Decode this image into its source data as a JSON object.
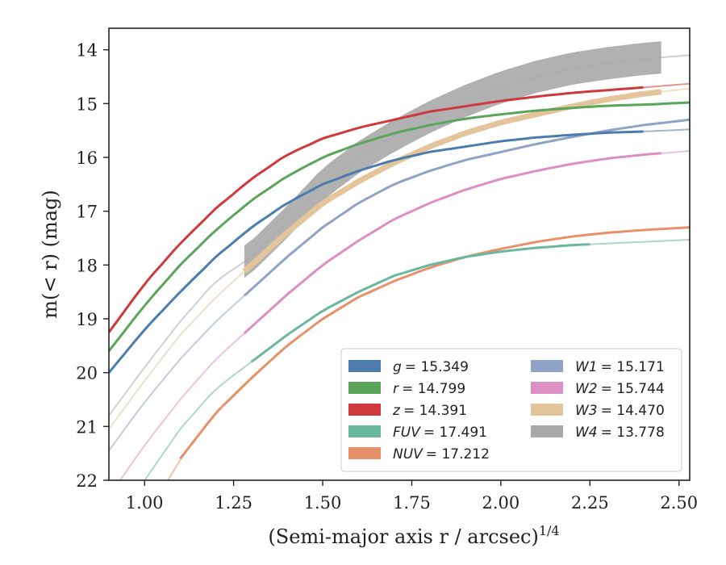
{
  "chart_data": {
    "type": "line",
    "xlabel": "(Semi-major axis r / arcsec)",
    "xlabel_sup": "1/4",
    "ylabel": "m(< r) (mag)",
    "xlim": [
      0.9,
      2.53
    ],
    "ylim": [
      22,
      13.6
    ],
    "y_inverted": true,
    "x_ticks": [
      "1.00",
      "1.25",
      "1.50",
      "1.75",
      "2.00",
      "2.25",
      "2.50"
    ],
    "y_ticks": [
      "14",
      "15",
      "16",
      "17",
      "18",
      "19",
      "20",
      "21",
      "22"
    ],
    "grid": false,
    "legend_position": "lower-right",
    "series": [
      {
        "name": "g",
        "label": "= 15.349",
        "color": "#4c7cae",
        "x": [
          0.9,
          1.0,
          1.1,
          1.2,
          1.3,
          1.4,
          1.5,
          1.6,
          1.7,
          1.8,
          1.9,
          2.0,
          2.1,
          2.2,
          2.3,
          2.4,
          2.53
        ],
        "y": [
          20.0,
          19.2,
          18.5,
          17.85,
          17.3,
          16.85,
          16.5,
          16.25,
          16.05,
          15.9,
          15.8,
          15.7,
          15.63,
          15.58,
          15.54,
          15.52,
          15.48
        ],
        "measured_x": [
          0.9,
          2.4
        ]
      },
      {
        "name": "r",
        "label": "= 14.799",
        "color": "#5aa55a",
        "x": [
          0.9,
          1.0,
          1.1,
          1.2,
          1.3,
          1.4,
          1.5,
          1.6,
          1.7,
          1.8,
          1.9,
          2.0,
          2.1,
          2.2,
          2.3,
          2.4,
          2.53
        ],
        "y": [
          19.6,
          18.75,
          18.0,
          17.35,
          16.8,
          16.35,
          16.0,
          15.75,
          15.55,
          15.4,
          15.28,
          15.2,
          15.13,
          15.08,
          15.04,
          15.02,
          14.98
        ],
        "measured_x": [
          0.9,
          2.53
        ]
      },
      {
        "name": "z",
        "label": "= 14.391",
        "color": "#d0393b",
        "x": [
          0.9,
          1.0,
          1.1,
          1.2,
          1.3,
          1.4,
          1.5,
          1.6,
          1.7,
          1.8,
          1.9,
          2.0,
          2.1,
          2.2,
          2.3,
          2.4,
          2.53
        ],
        "y": [
          19.25,
          18.35,
          17.6,
          16.95,
          16.4,
          15.95,
          15.65,
          15.45,
          15.3,
          15.15,
          15.05,
          14.95,
          14.87,
          14.8,
          14.75,
          14.7,
          14.63
        ],
        "measured_x": [
          0.9,
          2.4
        ]
      },
      {
        "name": "FUV",
        "label": "= 17.491",
        "color": "#6ab7a0",
        "x": [
          0.9,
          1.0,
          1.1,
          1.2,
          1.3,
          1.4,
          1.5,
          1.6,
          1.7,
          1.8,
          1.9,
          2.0,
          2.1,
          2.2,
          2.3,
          2.4,
          2.53
        ],
        "y": [
          23.0,
          22.0,
          21.05,
          20.3,
          19.8,
          19.3,
          18.85,
          18.5,
          18.2,
          18.0,
          17.85,
          17.75,
          17.68,
          17.63,
          17.6,
          17.57,
          17.53
        ],
        "measured_x": [
          1.3,
          2.25
        ]
      },
      {
        "name": "NUV",
        "label": "= 17.212",
        "color": "#e8906a",
        "x": [
          1.0,
          1.1,
          1.2,
          1.3,
          1.4,
          1.5,
          1.6,
          1.7,
          1.8,
          1.9,
          2.0,
          2.1,
          2.2,
          2.3,
          2.4,
          2.53
        ],
        "y": [
          22.8,
          21.6,
          20.75,
          20.1,
          19.5,
          19.0,
          18.6,
          18.3,
          18.05,
          17.85,
          17.7,
          17.57,
          17.47,
          17.4,
          17.35,
          17.3
        ],
        "measured_x": [
          1.1,
          2.53
        ]
      },
      {
        "name": "W1",
        "label": "= 15.171",
        "color": "#8fa3c6",
        "x": [
          0.9,
          1.0,
          1.1,
          1.2,
          1.3,
          1.4,
          1.5,
          1.6,
          1.7,
          1.8,
          1.9,
          2.0,
          2.1,
          2.2,
          2.3,
          2.4,
          2.53
        ],
        "y": [
          21.45,
          20.55,
          19.75,
          19.05,
          18.45,
          17.85,
          17.3,
          16.85,
          16.5,
          16.25,
          16.05,
          15.9,
          15.75,
          15.62,
          15.5,
          15.4,
          15.3
        ],
        "measured_x": [
          1.28,
          2.53
        ]
      },
      {
        "name": "W2",
        "label": "= 15.744",
        "color": "#dc8fc3",
        "x": [
          0.9,
          1.0,
          1.1,
          1.2,
          1.3,
          1.4,
          1.5,
          1.6,
          1.7,
          1.8,
          1.9,
          2.0,
          2.1,
          2.2,
          2.3,
          2.4,
          2.53
        ],
        "y": [
          22.3,
          21.35,
          20.5,
          19.75,
          19.15,
          18.55,
          18.0,
          17.55,
          17.15,
          16.85,
          16.6,
          16.4,
          16.25,
          16.12,
          16.02,
          15.95,
          15.88
        ],
        "measured_x": [
          1.28,
          2.45
        ]
      },
      {
        "name": "W3",
        "label": "= 14.470",
        "color": "#e3c49b",
        "x": [
          0.9,
          1.0,
          1.1,
          1.2,
          1.3,
          1.4,
          1.5,
          1.6,
          1.7,
          1.8,
          1.9,
          2.0,
          2.1,
          2.2,
          2.3,
          2.4,
          2.53
        ],
        "y": [
          21.05,
          20.15,
          19.3,
          18.6,
          18.0,
          17.4,
          16.85,
          16.45,
          16.1,
          15.8,
          15.55,
          15.35,
          15.2,
          15.05,
          14.92,
          14.82,
          14.72
        ],
        "measured_x": [
          1.28,
          2.45
        ]
      },
      {
        "name": "W4",
        "label": "= 13.778",
        "color": "#a9a9a9",
        "x": [
          0.9,
          1.0,
          1.1,
          1.2,
          1.3,
          1.4,
          1.5,
          1.6,
          1.7,
          1.8,
          1.9,
          2.0,
          2.1,
          2.2,
          2.3,
          2.4,
          2.53
        ],
        "y": [
          20.8,
          19.9,
          19.05,
          18.3,
          17.85,
          17.2,
          16.5,
          16.0,
          15.6,
          15.25,
          14.95,
          14.7,
          14.5,
          14.35,
          14.25,
          14.17,
          14.1
        ],
        "measured_x": [
          1.28,
          2.45
        ],
        "band_halfwidth": 0.3
      }
    ]
  }
}
